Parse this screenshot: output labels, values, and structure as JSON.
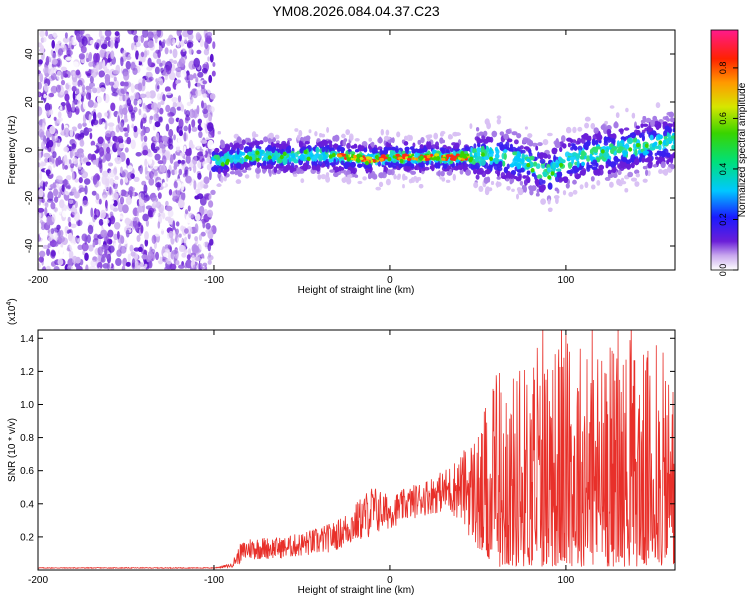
{
  "title": "YM08.2026.084.04.37.C23",
  "chart_data": [
    {
      "type": "heatmap",
      "xlabel": "Height of straight line (km)",
      "ylabel": "Frequency (Hz)",
      "xlim": [
        -200,
        162
      ],
      "ylim": [
        -50,
        50
      ],
      "xticks": [
        -200,
        -100,
        0,
        100
      ],
      "yticks": [
        -40,
        -20,
        0,
        20,
        40
      ],
      "colorbar": {
        "label": "Normalized spectral amplitude",
        "range": [
          0,
          0.95
        ],
        "ticks": [
          "0.0",
          "0.2",
          "0.4",
          "0.6",
          "0.8"
        ],
        "tick_values": [
          0.0,
          0.2,
          0.4,
          0.6,
          0.8
        ],
        "colormap": "rainbow"
      },
      "ridge": {
        "x": [
          -100,
          -80,
          -60,
          -40,
          -25,
          -10,
          0,
          20,
          45,
          60,
          80,
          90,
          100,
          130,
          162
        ],
        "frequency_hz": [
          -5,
          -2,
          -3,
          -2,
          -3,
          -4,
          -3,
          -3,
          -3,
          -2,
          -6,
          -10,
          -4,
          0,
          4
        ]
      },
      "noise_region_x": [
        -200,
        -100
      ]
    },
    {
      "type": "line",
      "xlabel": "Height of straight line (km)",
      "ylabel": "SNR (10 * v/v)",
      "y_multiplier_label": "(x10",
      "y_multiplier_exp": "4",
      "y_multiplier_close": ")",
      "xlim": [
        -200,
        162
      ],
      "ylim": [
        0,
        1.45
      ],
      "xticks": [
        -200,
        -100,
        0,
        100
      ],
      "yticks": [
        "0.2",
        "0.4",
        "0.6",
        "0.8",
        "1.0",
        "1.2",
        "1.4"
      ],
      "ytick_values": [
        0.2,
        0.4,
        0.6,
        0.8,
        1.0,
        1.2,
        1.4
      ],
      "color": "#e8302a",
      "envelope": {
        "x": [
          -200,
          -100,
          -90,
          -85,
          -80,
          -60,
          -40,
          -30,
          -20,
          -10,
          0,
          10,
          20,
          30,
          40,
          50,
          60,
          70,
          80,
          100,
          120,
          140,
          162
        ],
        "baseline": [
          0.01,
          0.01,
          0.015,
          0.04,
          0.06,
          0.07,
          0.09,
          0.12,
          0.16,
          0.2,
          0.25,
          0.3,
          0.33,
          0.35,
          0.3,
          0.1,
          0.02,
          0.02,
          0.02,
          0.02,
          0.02,
          0.02,
          0.02
        ],
        "upper": [
          0.015,
          0.015,
          0.04,
          0.16,
          0.2,
          0.2,
          0.26,
          0.3,
          0.4,
          0.52,
          0.45,
          0.5,
          0.55,
          0.6,
          0.7,
          0.85,
          1.15,
          1.2,
          1.3,
          1.45,
          1.4,
          1.35,
          1.3
        ]
      }
    }
  ]
}
